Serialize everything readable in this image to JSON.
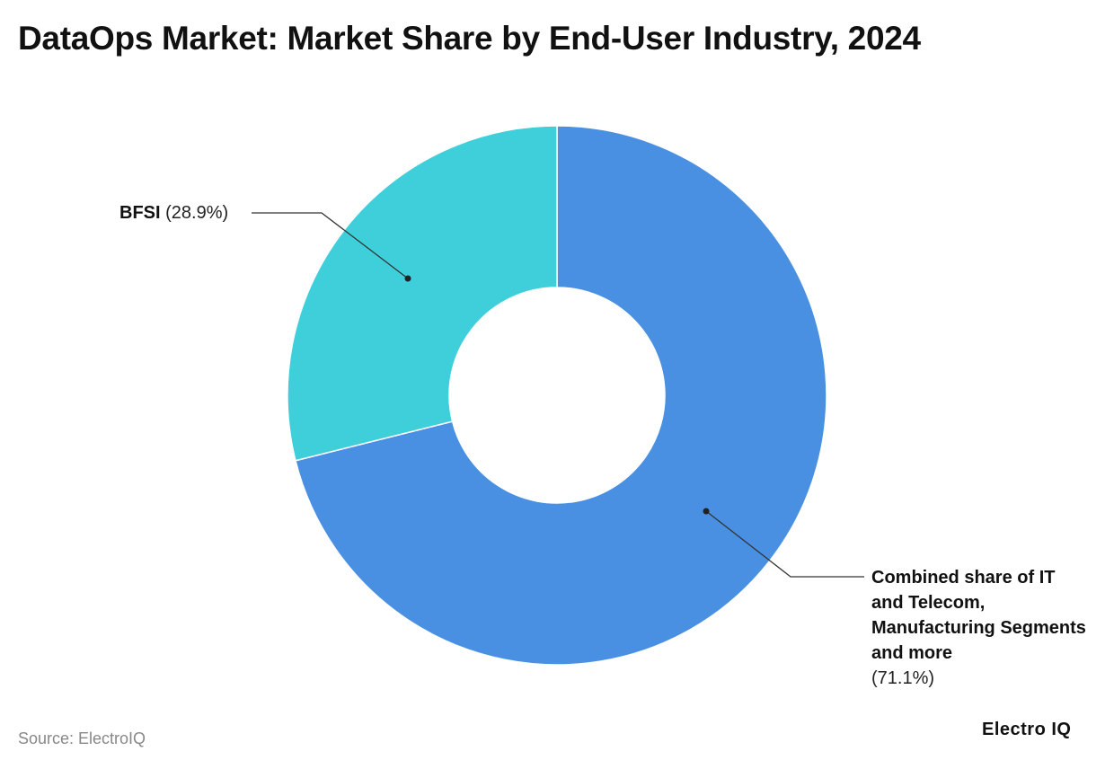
{
  "chart_data": {
    "type": "pie",
    "variant": "donut",
    "title": "DataOps Market: Market Share by End-User Industry, 2024",
    "slices": [
      {
        "label": "Combined share of IT and Telecom, Manufacturing Segments and more",
        "value": 71.1,
        "value_label": "(71.1%)",
        "color": "#4A90E2"
      },
      {
        "label": "BFSI",
        "value": 28.9,
        "value_label": "(28.9%)",
        "color": "#3FCFDB"
      }
    ],
    "legend": "none (direct labels)"
  },
  "footer": {
    "source": "Source: ElectroIQ",
    "logo": "Electro IQ"
  }
}
